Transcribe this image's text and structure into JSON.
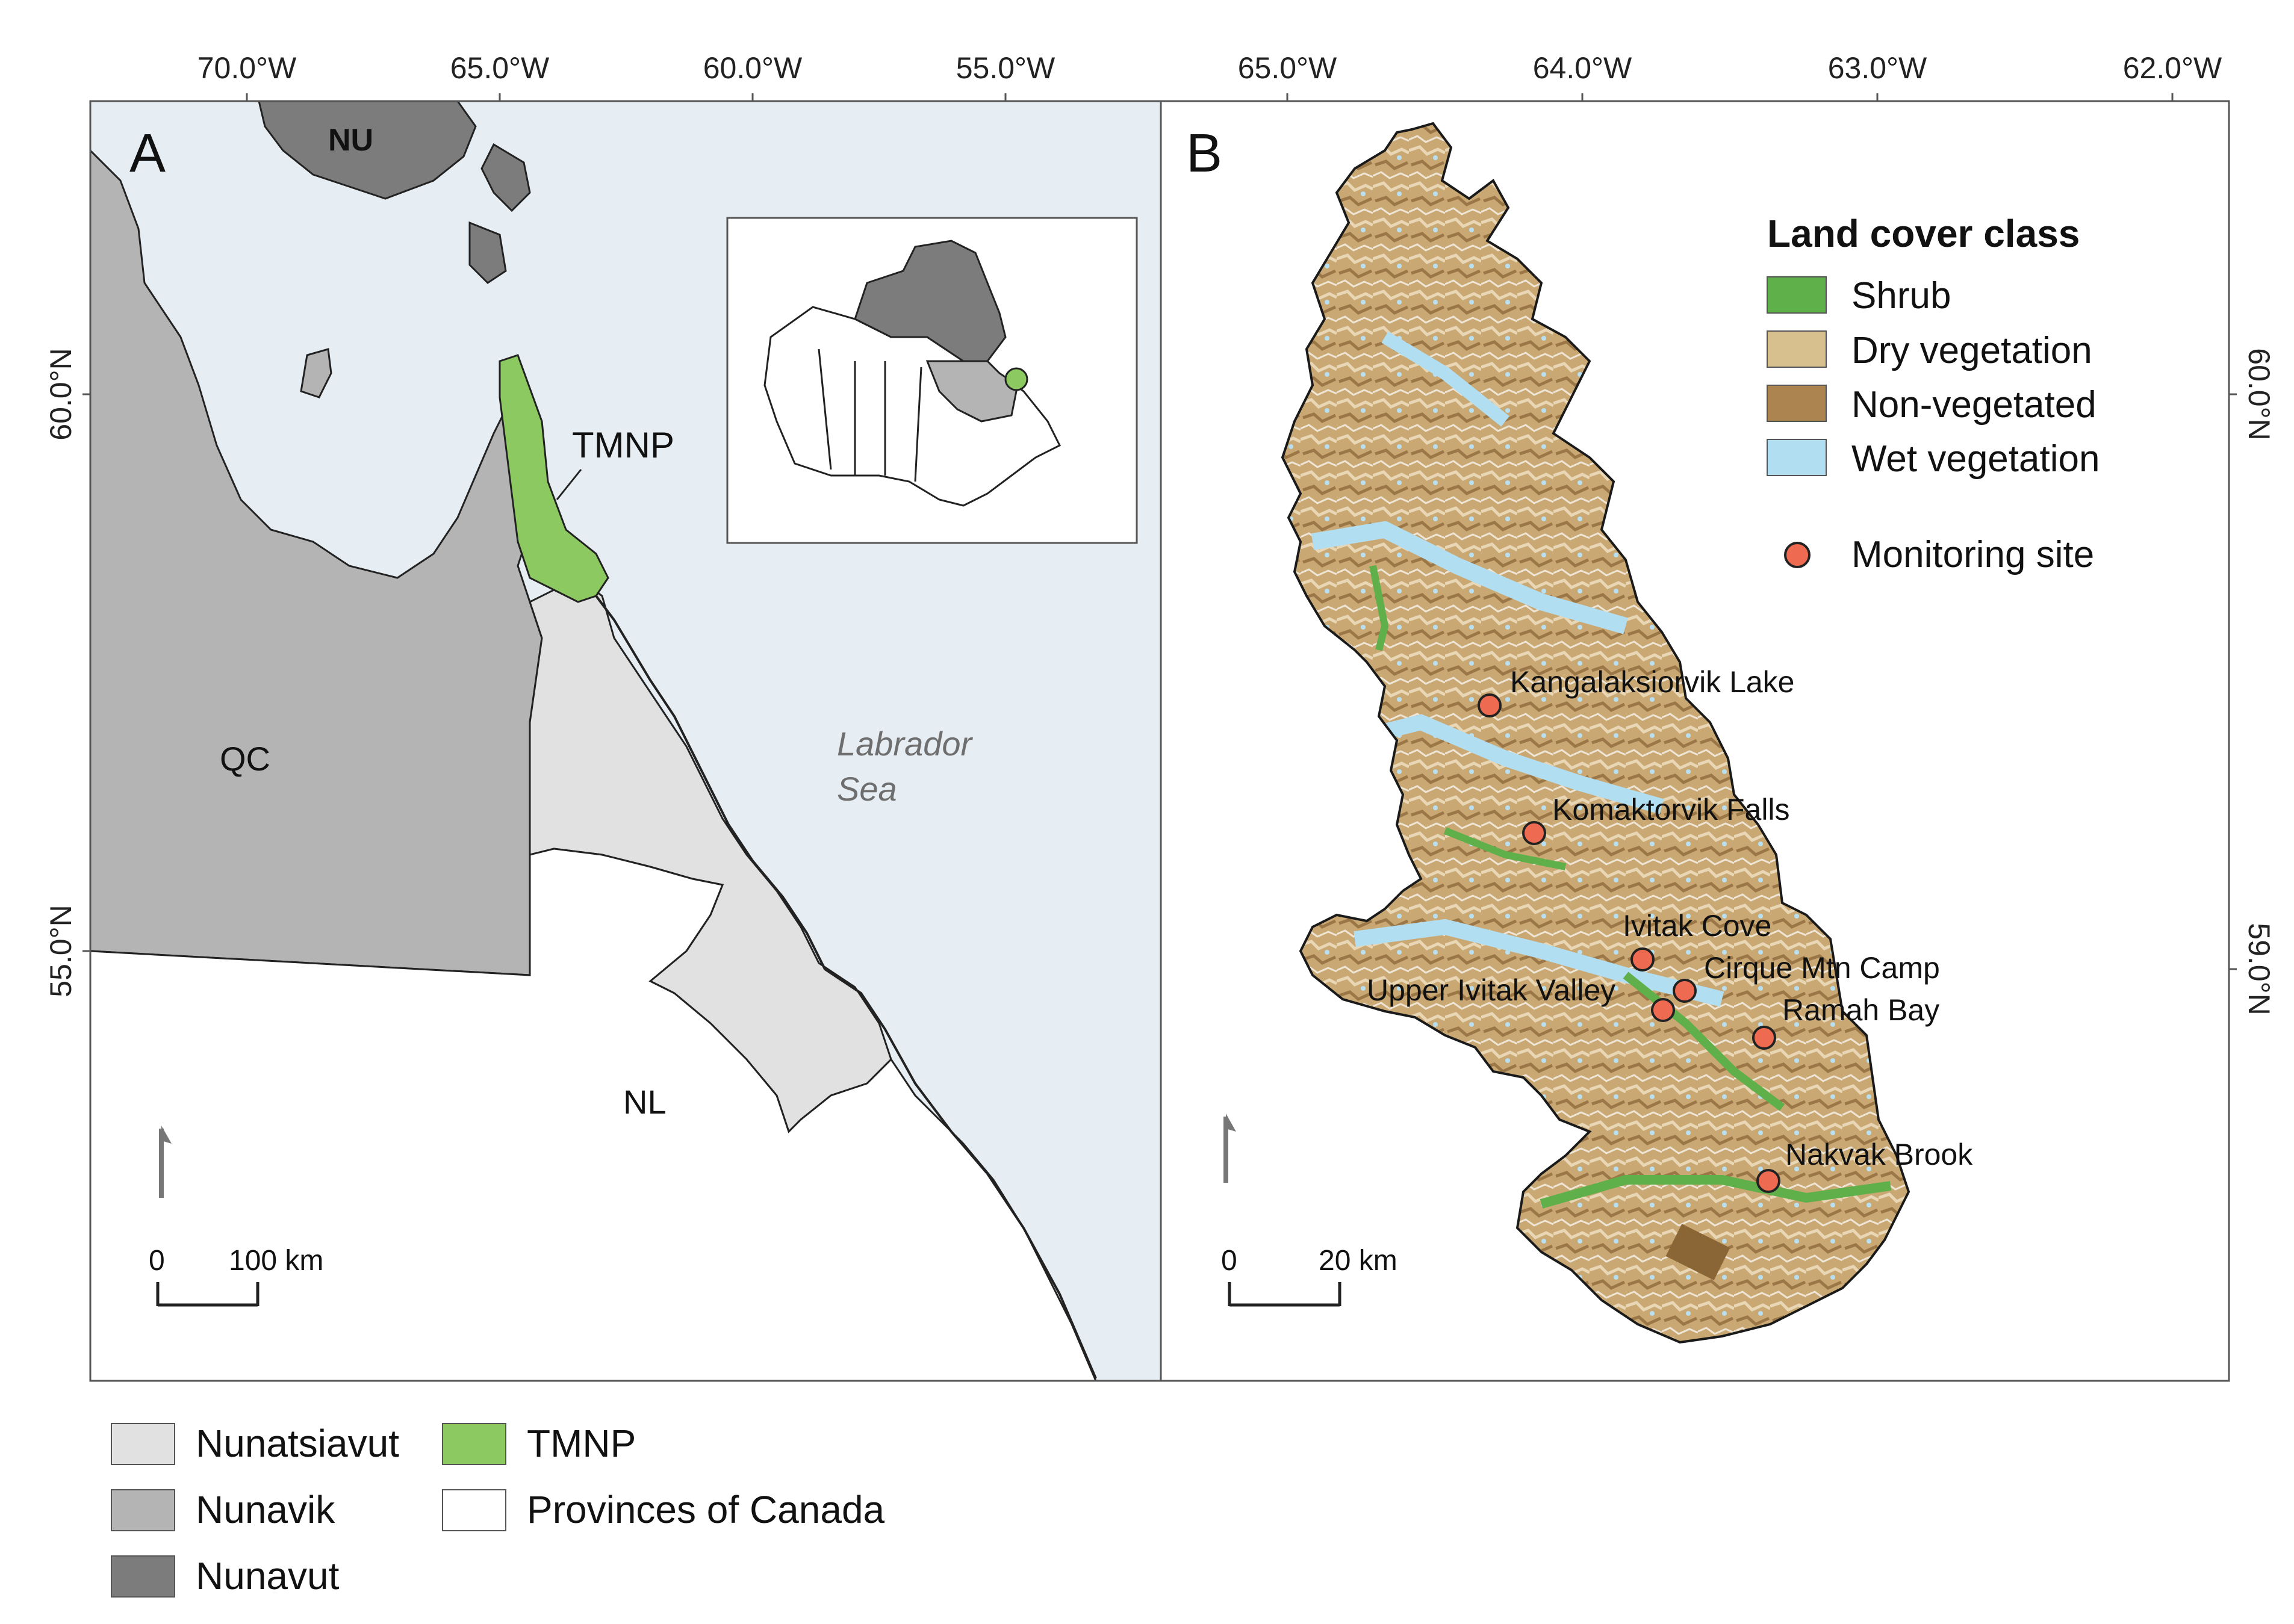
{
  "colors": {
    "sea": "#e6eef3",
    "nunatsiavut": "#e1e1e1",
    "nunavik": "#b4b4b4",
    "nunavut": "#7c7c7c",
    "tmnp": "#8cc960",
    "provinces": "#ffffff",
    "shrub": "#5faf4a",
    "dry_vegetation": "#d8bf8e",
    "non_vegetated": "#ab844f",
    "wet_vegetation": "#b2def2",
    "site": "#ee6a50",
    "frame": "#555555",
    "label_gray": "#6e6e6e"
  },
  "panel_a": {
    "letter": "A",
    "lon_ticks": [
      "70.0°W",
      "65.0°W",
      "60.0°W",
      "55.0°W"
    ],
    "lat_ticks": [
      "60.0°N",
      "55.0°N"
    ],
    "labels": {
      "nu": "NU",
      "qc": "QC",
      "nl": "NL",
      "tmnp": "TMNP",
      "sea_line1": "Labrador",
      "sea_line2": "Sea"
    },
    "scale": {
      "zero": "0",
      "length": "100 km"
    },
    "north_arrow_icon": "north-arrow-icon"
  },
  "panel_b": {
    "letter": "B",
    "lon_ticks": [
      "65.0°W",
      "64.0°W",
      "63.0°W",
      "62.0°W"
    ],
    "lat_ticks": [
      "60.0°N",
      "59.0°N"
    ],
    "legend": {
      "title": "Land cover class",
      "items": [
        {
          "label": "Shrub"
        },
        {
          "label": "Dry vegetation"
        },
        {
          "label": "Non-vegetated"
        },
        {
          "label": "Wet vegetation"
        }
      ],
      "site_label": "Monitoring site"
    },
    "sites": [
      {
        "name": "Kangalaksiorvik Lake"
      },
      {
        "name": "Komaktorvik Falls"
      },
      {
        "name": "Ivitak Cove"
      },
      {
        "name": "Cirque Mtn Camp"
      },
      {
        "name": "Upper Ivitak Valley"
      },
      {
        "name": "Ramah Bay"
      },
      {
        "name": "Nakvak Brook"
      }
    ],
    "scale": {
      "zero": "0",
      "length": "20 km"
    },
    "north_arrow_icon": "north-arrow-icon"
  },
  "bottom_legend": {
    "items": [
      {
        "label": "Nunatsiavut"
      },
      {
        "label": "Nunavik"
      },
      {
        "label": "Nunavut"
      },
      {
        "label": "TMNP"
      },
      {
        "label": "Provinces of Canada"
      }
    ]
  }
}
